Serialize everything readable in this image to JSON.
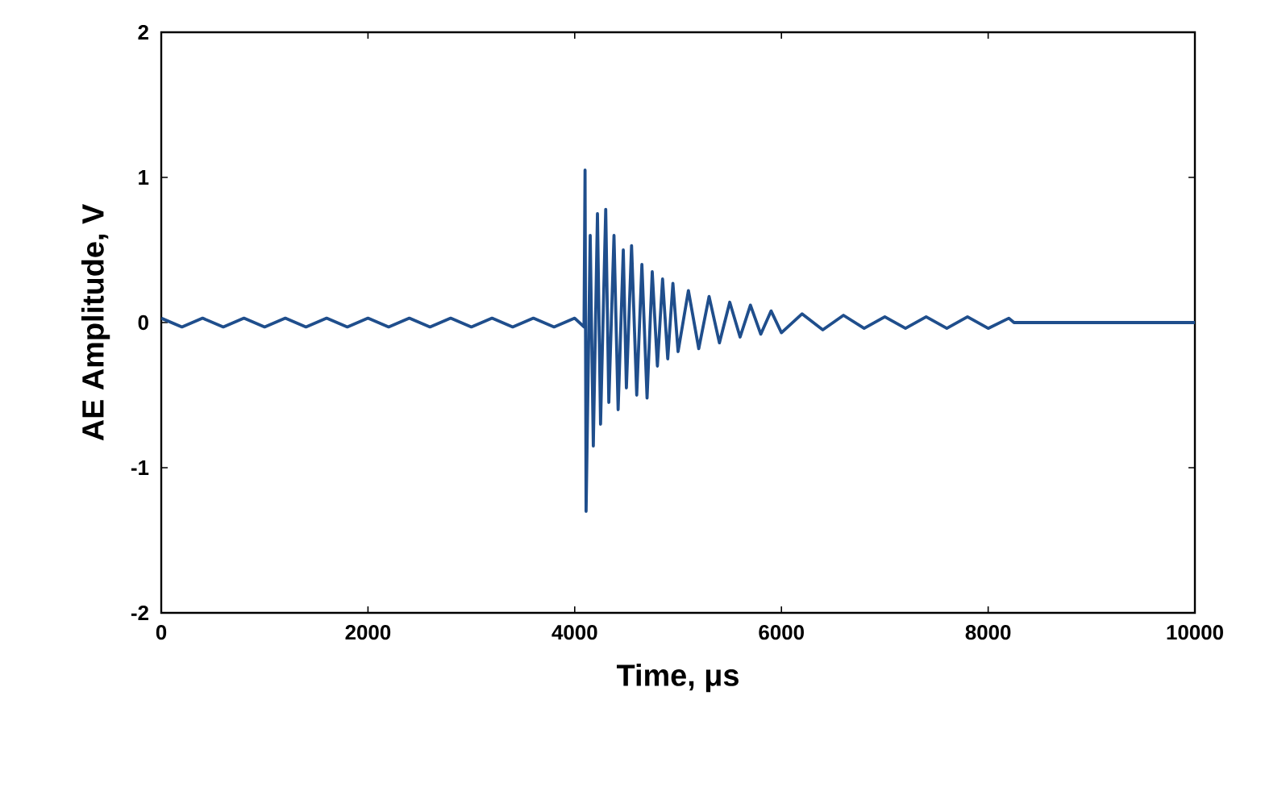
{
  "chart_data": {
    "type": "line",
    "xlabel": "Time, μs",
    "ylabel": "AE Amplitude, V",
    "xlim": [
      0,
      10000
    ],
    "ylim": [
      -2,
      2
    ],
    "xticks": [
      0,
      2000,
      4000,
      6000,
      8000,
      10000
    ],
    "yticks": [
      -2,
      -1,
      0,
      1,
      2
    ],
    "grid": false,
    "marker": "none",
    "line_style": "solid",
    "series": [
      {
        "color": "#1f4e8c",
        "x": [
          0,
          200,
          400,
          600,
          800,
          1000,
          1200,
          1400,
          1600,
          1800,
          2000,
          2200,
          2400,
          2600,
          2800,
          3000,
          3200,
          3400,
          3600,
          3800,
          4000,
          4090,
          4100,
          4110,
          4150,
          4180,
          4220,
          4250,
          4300,
          4330,
          4380,
          4420,
          4470,
          4500,
          4550,
          4600,
          4650,
          4700,
          4750,
          4800,
          4850,
          4900,
          4950,
          5000,
          5100,
          5200,
          5300,
          5400,
          5500,
          5600,
          5700,
          5800,
          5900,
          6000,
          6200,
          6400,
          6600,
          6800,
          7000,
          7200,
          7400,
          7600,
          7800,
          8000,
          8200,
          8250,
          10000
        ],
        "values": [
          0.03,
          -0.03,
          0.03,
          -0.03,
          0.03,
          -0.03,
          0.03,
          -0.03,
          0.03,
          -0.03,
          0.03,
          -0.03,
          0.03,
          -0.03,
          0.03,
          -0.03,
          0.03,
          -0.03,
          0.03,
          -0.03,
          0.03,
          -0.03,
          1.05,
          -1.3,
          0.6,
          -0.85,
          0.75,
          -0.7,
          0.78,
          -0.55,
          0.6,
          -0.6,
          0.5,
          -0.45,
          0.53,
          -0.5,
          0.4,
          -0.52,
          0.35,
          -0.3,
          0.3,
          -0.25,
          0.27,
          -0.2,
          0.22,
          -0.18,
          0.18,
          -0.14,
          0.14,
          -0.1,
          0.12,
          -0.08,
          0.08,
          -0.07,
          0.06,
          -0.05,
          0.05,
          -0.04,
          0.04,
          -0.04,
          0.04,
          -0.04,
          0.04,
          -0.04,
          0.03,
          0,
          0
        ]
      }
    ]
  }
}
